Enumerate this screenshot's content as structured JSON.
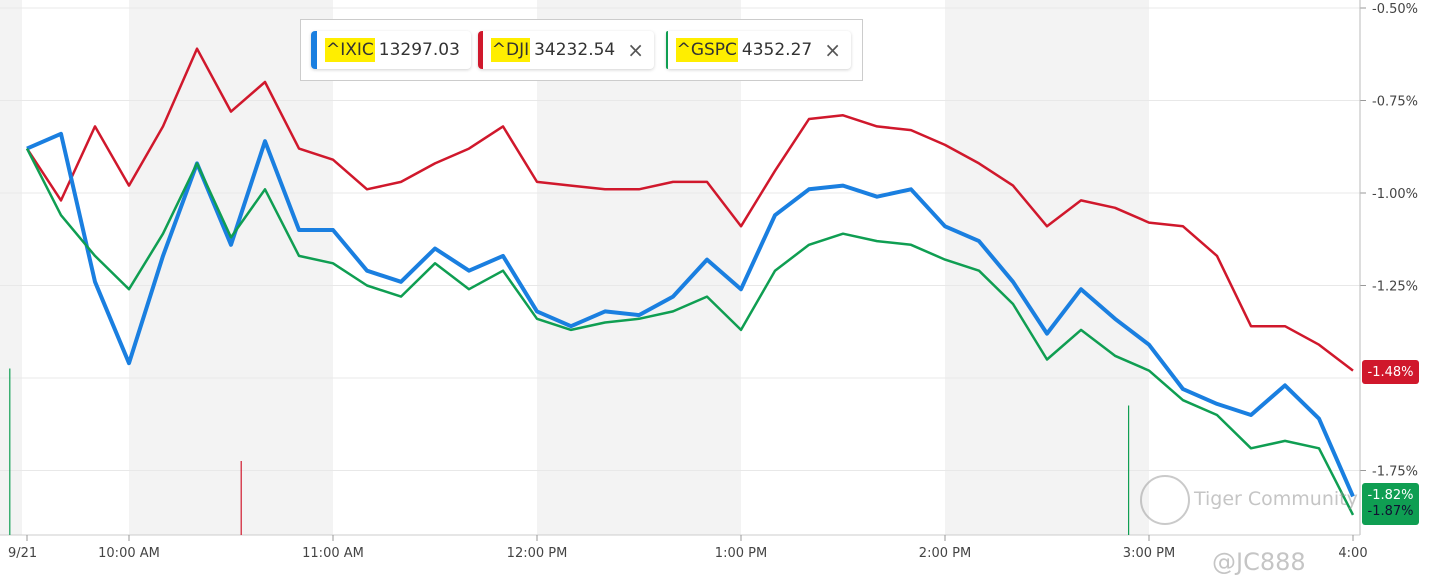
{
  "legend": [
    {
      "symbol": "^IXIC",
      "value": "13297.03",
      "color": "#1a7fe0",
      "removable": false
    },
    {
      "symbol": "^DJI",
      "value": "34232.54",
      "color": "#d0182c",
      "removable": true
    },
    {
      "symbol": "^GSPC",
      "value": "4352.27",
      "color": "#0f9e52",
      "removable": true
    }
  ],
  "close_icon": "×",
  "watermark": {
    "brand": "Tiger Community",
    "user": "@JC888"
  },
  "chart_data": {
    "type": "line",
    "title": "",
    "xlabel": "",
    "ylabel": "",
    "x_unit": "minutes since 9:30",
    "x": [
      0,
      10,
      20,
      30,
      40,
      50,
      60,
      70,
      80,
      90,
      100,
      110,
      120,
      130,
      140,
      150,
      160,
      170,
      180,
      190,
      200,
      210,
      220,
      230,
      240,
      250,
      260,
      270,
      280,
      290,
      300,
      310,
      320,
      330,
      340,
      350,
      360,
      370,
      380,
      390
    ],
    "xlim": [
      0,
      390
    ],
    "ylim": [
      -1.95,
      -0.48
    ],
    "x_ticks": [
      {
        "m": 0,
        "label": "9/21"
      },
      {
        "m": 30,
        "label": "10:00 AM"
      },
      {
        "m": 90,
        "label": "11:00 AM"
      },
      {
        "m": 150,
        "label": "12:00 PM"
      },
      {
        "m": 210,
        "label": "1:00 PM"
      },
      {
        "m": 270,
        "label": "2:00 PM"
      },
      {
        "m": 330,
        "label": "3:00 PM"
      },
      {
        "m": 390,
        "label": "4:00"
      }
    ],
    "y_ticks": [
      {
        "v": -0.5,
        "label": "-0.50%"
      },
      {
        "v": -0.75,
        "label": "-0.75%"
      },
      {
        "v": -1.0,
        "label": "-1.00%"
      },
      {
        "v": -1.25,
        "label": "-1.25%"
      },
      {
        "v": -1.75,
        "label": "-1.75%"
      }
    ],
    "shaded_ranges": [
      [
        30,
        90
      ],
      [
        150,
        210
      ],
      [
        270,
        330
      ]
    ],
    "series": [
      {
        "name": "^DJI",
        "color": "#d0182c",
        "last_label": "-1.48%",
        "values": [
          -0.88,
          -1.02,
          -0.82,
          -0.98,
          -0.82,
          -0.61,
          -0.78,
          -0.7,
          -0.88,
          -0.91,
          -0.99,
          -0.97,
          -0.92,
          -0.88,
          -0.82,
          -0.97,
          -0.98,
          -0.99,
          -0.99,
          -0.97,
          -0.97,
          -1.09,
          -0.94,
          -0.8,
          -0.79,
          -0.82,
          -0.83,
          -0.87,
          -0.92,
          -0.98,
          -1.09,
          -1.02,
          -1.04,
          -1.08,
          -1.09,
          -1.17,
          -1.36,
          -1.36,
          -1.41,
          -1.48
        ]
      },
      {
        "name": "^IXIC",
        "color": "#1a7fe0",
        "last_label": "-1.82%",
        "values": [
          -0.88,
          -0.84,
          -1.24,
          -1.46,
          -1.17,
          -0.92,
          -1.14,
          -0.86,
          -1.1,
          -1.1,
          -1.21,
          -1.24,
          -1.15,
          -1.21,
          -1.17,
          -1.32,
          -1.36,
          -1.32,
          -1.33,
          -1.28,
          -1.18,
          -1.26,
          -1.06,
          -0.99,
          -0.98,
          -1.01,
          -0.99,
          -1.09,
          -1.13,
          -1.24,
          -1.38,
          -1.26,
          -1.34,
          -1.41,
          -1.53,
          -1.57,
          -1.6,
          -1.52,
          -1.61,
          -1.82
        ]
      },
      {
        "name": "^GSPC",
        "color": "#0f9e52",
        "last_label": "-1.87%",
        "values": [
          -0.88,
          -1.06,
          -1.17,
          -1.26,
          -1.11,
          -0.92,
          -1.12,
          -0.99,
          -1.17,
          -1.19,
          -1.25,
          -1.28,
          -1.19,
          -1.26,
          -1.21,
          -1.34,
          -1.37,
          -1.35,
          -1.34,
          -1.32,
          -1.28,
          -1.37,
          -1.21,
          -1.14,
          -1.11,
          -1.13,
          -1.14,
          -1.18,
          -1.21,
          -1.3,
          -1.45,
          -1.37,
          -1.44,
          -1.48,
          -1.56,
          -1.6,
          -1.69,
          -1.67,
          -1.69,
          -1.87
        ]
      }
    ],
    "volume_spikes": [
      {
        "m": -3,
        "color": "#0f9e52",
        "rel": 0.45
      },
      {
        "m": 63,
        "color": "#d0182c",
        "rel": 0.2
      },
      {
        "m": 324,
        "color": "#0f9e52",
        "rel": 0.35
      }
    ]
  }
}
